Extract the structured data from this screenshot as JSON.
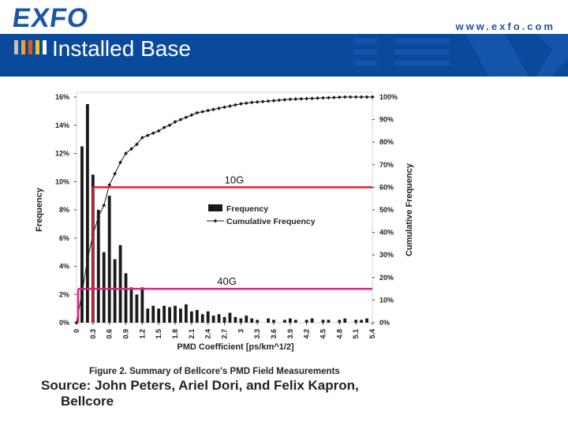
{
  "header": {
    "logo": "EXFO",
    "url": "www.exfo.com",
    "title": "Installed Base",
    "band_color": "#0a4a9c",
    "bar_colors": [
      "#c0c0c0",
      "#e8a23a",
      "#e05a1a",
      "#f2c230",
      "#ffffff"
    ]
  },
  "chart_data": {
    "type": "bar",
    "caption": "Figure 2. Summary of Bellcore's PMD Field Measurements",
    "xlabel": "PMD Coefficient [ps/km^1/2]",
    "ylabel": "Frequency",
    "y2label": "Cumulative Frequency",
    "x_ticks": [
      "0",
      "0.3",
      "0.6",
      "0.9",
      "1.2",
      "1.5",
      "1.8",
      "2.1",
      "2.4",
      "2.7",
      "3",
      "3.3",
      "3.6",
      "3.9",
      "4.2",
      "4.5",
      "4.8",
      "5.1",
      "5.4"
    ],
    "y_ticks": [
      "0%",
      "2%",
      "4%",
      "6%",
      "8%",
      "10%",
      "12%",
      "14%",
      "16%"
    ],
    "y2_ticks": [
      "0%",
      "10%",
      "20%",
      "30%",
      "40%",
      "50%",
      "60%",
      "70%",
      "80%",
      "90%",
      "100%"
    ],
    "ylim": [
      0,
      16
    ],
    "y2lim": [
      0,
      100
    ],
    "xlim": [
      0,
      5.4
    ],
    "bin_width": 0.1,
    "bars_x": [
      0.1,
      0.2,
      0.3,
      0.4,
      0.5,
      0.6,
      0.7,
      0.8,
      0.9,
      1.0,
      1.1,
      1.2,
      1.3,
      1.4,
      1.5,
      1.6,
      1.7,
      1.8,
      1.9,
      2.0,
      2.1,
      2.2,
      2.3,
      2.4,
      2.5,
      2.6,
      2.7,
      2.8,
      2.9,
      3.0,
      3.1,
      3.2,
      3.3,
      3.5,
      3.6,
      3.8,
      3.9,
      4.0,
      4.2,
      4.3,
      4.5,
      4.6,
      4.8,
      4.9,
      5.1,
      5.2,
      5.3
    ],
    "series": [
      {
        "name": "Frequency",
        "values": [
          12.5,
          15.5,
          10.5,
          8.0,
          5.0,
          9.0,
          4.5,
          5.5,
          3.5,
          2.5,
          2.0,
          2.5,
          1.0,
          1.2,
          1.0,
          1.2,
          1.1,
          1.2,
          1.0,
          1.3,
          0.8,
          0.9,
          0.6,
          0.8,
          0.5,
          0.6,
          0.4,
          0.7,
          0.4,
          0.3,
          0.5,
          0.3,
          0.2,
          0.3,
          0.2,
          0.2,
          0.3,
          0.2,
          0.2,
          0.3,
          0.2,
          0.2,
          0.2,
          0.3,
          0.2,
          0.2,
          0.3
        ]
      },
      {
        "name": "Cumulative Frequency",
        "x": [
          0.0,
          0.1,
          0.2,
          0.3,
          0.4,
          0.5,
          0.6,
          0.7,
          0.8,
          0.9,
          1.0,
          1.1,
          1.2,
          1.3,
          1.4,
          1.5,
          1.6,
          1.7,
          1.8,
          1.9,
          2.0,
          2.1,
          2.2,
          2.3,
          2.4,
          2.5,
          2.6,
          2.7,
          2.8,
          2.9,
          3.0,
          3.1,
          3.2,
          3.3,
          3.4,
          3.5,
          3.6,
          3.7,
          3.8,
          3.9,
          4.0,
          4.1,
          4.2,
          4.3,
          4.4,
          4.5,
          4.6,
          4.7,
          4.8,
          4.9,
          5.0,
          5.1,
          5.2,
          5.3,
          5.4
        ],
        "values": [
          0,
          13,
          28,
          39,
          47,
          52,
          61,
          66,
          71,
          75,
          77,
          79,
          82,
          83,
          84,
          85,
          86.5,
          87.5,
          89,
          90,
          91,
          92,
          93,
          93.5,
          94,
          94.5,
          95,
          95.5,
          96,
          96.5,
          97,
          97.3,
          97.6,
          97.8,
          98,
          98.2,
          98.4,
          98.6,
          98.8,
          99,
          99.1,
          99.2,
          99.3,
          99.4,
          99.5,
          99.6,
          99.7,
          99.8,
          99.9,
          100,
          100,
          100,
          100,
          100,
          100
        ]
      }
    ],
    "annotations": [
      {
        "label": "10G",
        "x": 0.3,
        "cumulative": 60,
        "color": "#e0202a"
      },
      {
        "label": "40G",
        "x": 0.03,
        "cumulative": 15,
        "color": "#d4287a"
      }
    ]
  },
  "source": {
    "line1": "Source: John Peters, Ariel Dori, and Felix Kapron,",
    "line2": "Bellcore"
  }
}
